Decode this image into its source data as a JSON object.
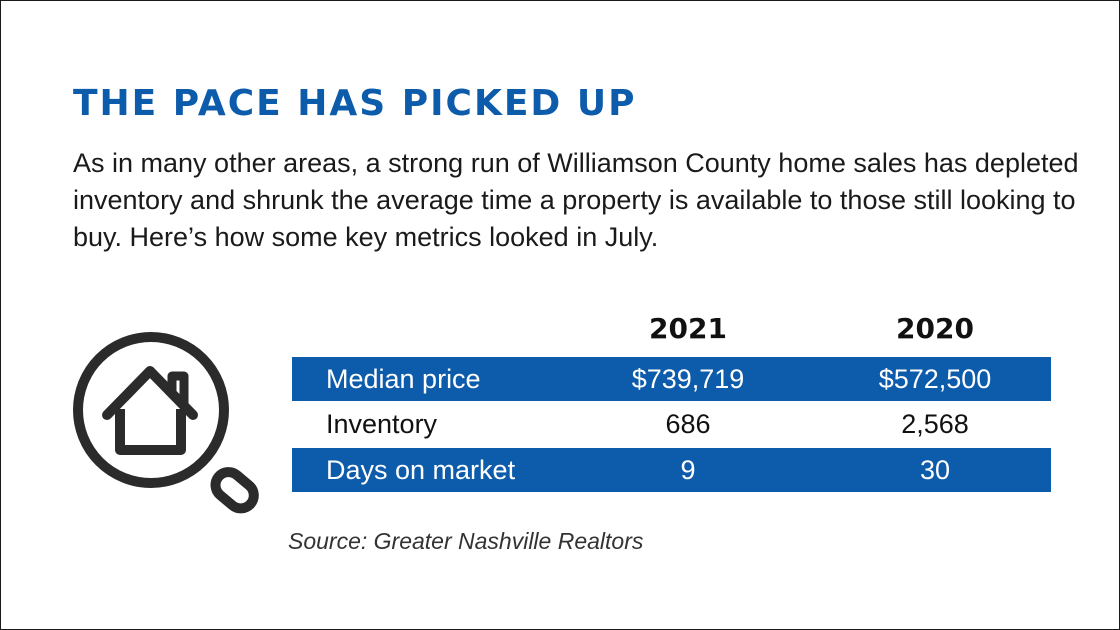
{
  "title": "THE PACE HAS PICKED UP",
  "intro": "As in many other areas, a strong run of Williamson County home sales has depleted inventory and shrunk the average time a property is available to those still looking to buy. Here’s how some key metrics looked in July.",
  "icon": "house-search-icon",
  "colors": {
    "accent": "#0d5cab",
    "text": "#1a1a1a",
    "row_text_on_accent": "#ffffff"
  },
  "chart_data": {
    "type": "table",
    "columns": [
      "2021",
      "2020"
    ],
    "rows": [
      {
        "label": "Median price",
        "values": [
          "$739,719",
          "$572,500"
        ],
        "shaded": true
      },
      {
        "label": "Inventory",
        "values": [
          "686",
          "2,568"
        ],
        "shaded": false
      },
      {
        "label": "Days on market",
        "values": [
          "9",
          "30"
        ],
        "shaded": true
      }
    ]
  },
  "source": "Source: Greater Nashville Realtors"
}
